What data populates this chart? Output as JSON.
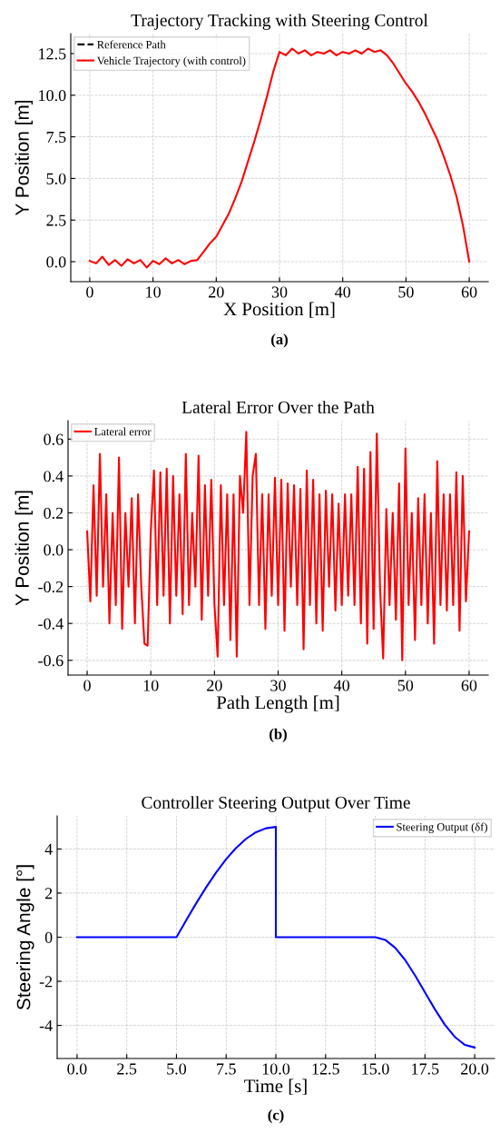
{
  "chart_data": [
    {
      "type": "line",
      "title": "Trajectory Tracking with Steering Control",
      "xlabel": "X Position [m]",
      "ylabel": "Y Position [m]",
      "annotations": [
        "(a)"
      ],
      "x": [
        0,
        1,
        2,
        3,
        4,
        5,
        6,
        7,
        8,
        9,
        10,
        11,
        12,
        13,
        14,
        15,
        16,
        17,
        18,
        19,
        20,
        21,
        22,
        23,
        24,
        25,
        26,
        27,
        28,
        29,
        30,
        31,
        32,
        33,
        34,
        35,
        36,
        37,
        38,
        39,
        40,
        41,
        42,
        43,
        44,
        45,
        46,
        47,
        48,
        49,
        50,
        51,
        52,
        53,
        54,
        55,
        56,
        57,
        58,
        59,
        60
      ],
      "series": [
        {
          "name": "Reference Path",
          "color": "#000000",
          "line_style": "dashed",
          "values": [
            null,
            null,
            null,
            null,
            null,
            null,
            null,
            null,
            null,
            null,
            null,
            null,
            null,
            null,
            null,
            null,
            null,
            null,
            null,
            null,
            null,
            null,
            null,
            null,
            null,
            null,
            null,
            null,
            null,
            null,
            null,
            null,
            null,
            null,
            null,
            null,
            null,
            null,
            null,
            null,
            null,
            null,
            null,
            null,
            null,
            null,
            null,
            null,
            null,
            null,
            null,
            null,
            null,
            null,
            null,
            null,
            null,
            null,
            null,
            null,
            null
          ]
        },
        {
          "name": "Vehicle Trajectory (with control)",
          "color": "#ff0000",
          "line_style": "solid",
          "values": [
            0.05,
            -0.1,
            0.3,
            -0.2,
            0.1,
            -0.25,
            0.15,
            -0.1,
            0.1,
            -0.35,
            0.05,
            -0.15,
            0.2,
            -0.1,
            0.1,
            -0.15,
            0.05,
            0.1,
            0.6,
            1.1,
            1.5,
            2.2,
            2.9,
            3.8,
            4.8,
            6.0,
            7.2,
            8.5,
            9.9,
            11.4,
            12.6,
            12.4,
            12.8,
            12.5,
            12.7,
            12.4,
            12.6,
            12.5,
            12.7,
            12.4,
            12.6,
            12.5,
            12.7,
            12.5,
            12.8,
            12.6,
            12.7,
            12.4,
            11.9,
            11.3,
            10.7,
            10.2,
            9.6,
            8.9,
            8.1,
            7.3,
            6.3,
            5.2,
            3.9,
            2.2,
            0.0
          ]
        }
      ],
      "xlim": [
        -3,
        63
      ],
      "ylim": [
        -1.2,
        13.7
      ],
      "xticks": [
        0,
        10,
        20,
        30,
        40,
        50,
        60
      ],
      "yticks": [
        {
          "value": 0,
          "label": "0.0"
        },
        {
          "value": 2.5,
          "label": "2.5"
        },
        {
          "value": 5,
          "label": "5.0"
        },
        {
          "value": 7.5,
          "label": "7.5"
        },
        {
          "value": 10,
          "label": "10.0"
        },
        {
          "value": 12.5,
          "label": "12.5"
        }
      ],
      "grid": true,
      "legend": "top left"
    },
    {
      "type": "line",
      "title": "Lateral Error Over the Path",
      "xlabel": "Path Length [m]",
      "ylabel": "Y Position [m]",
      "annotations": [
        "(b)"
      ],
      "x": [
        0,
        0.5,
        1,
        1.5,
        2,
        2.5,
        3,
        3.5,
        4,
        4.5,
        5,
        5.5,
        6,
        6.5,
        7,
        7.5,
        8,
        8.5,
        9,
        9.5,
        10,
        10.5,
        11,
        11.5,
        12,
        12.5,
        13,
        13.5,
        14,
        14.5,
        15,
        15.5,
        16,
        16.5,
        17,
        17.5,
        18,
        18.5,
        19,
        19.5,
        20,
        20.5,
        21,
        21.5,
        22,
        22.5,
        23,
        23.5,
        24,
        24.5,
        25,
        25.5,
        26,
        26.5,
        27,
        27.5,
        28,
        28.5,
        29,
        29.5,
        30,
        30.5,
        31,
        31.5,
        32,
        32.5,
        33,
        33.5,
        34,
        34.5,
        35,
        35.5,
        36,
        36.5,
        37,
        37.5,
        38,
        38.5,
        39,
        39.5,
        40,
        40.5,
        41,
        41.5,
        42,
        42.5,
        43,
        43.5,
        44,
        44.5,
        45,
        45.5,
        46,
        46.5,
        47,
        47.5,
        48,
        48.5,
        49,
        49.5,
        50,
        50.5,
        51,
        51.5,
        52,
        52.5,
        53,
        53.5,
        54,
        54.5,
        55,
        55.5,
        56,
        56.5,
        57,
        57.5,
        58,
        58.5,
        59,
        59.5,
        60
      ],
      "series": [
        {
          "name": "Lateral error",
          "color": "#ff0000",
          "line_style": "solid",
          "values": [
            0.1,
            -0.28,
            0.35,
            -0.25,
            0.52,
            -0.2,
            0.3,
            -0.4,
            0.2,
            -0.3,
            0.5,
            -0.43,
            0.2,
            -0.2,
            0.28,
            -0.4,
            0.3,
            -0.2,
            -0.51,
            -0.52,
            0.1,
            0.43,
            -0.3,
            0.42,
            -0.25,
            0.44,
            -0.4,
            0.4,
            -0.25,
            0.3,
            -0.35,
            0.52,
            -0.3,
            0.2,
            -0.2,
            0.51,
            -0.38,
            0.35,
            -0.25,
            0.38,
            -0.3,
            -0.58,
            0.35,
            -0.3,
            0.3,
            -0.49,
            0.3,
            -0.58,
            0.4,
            0.2,
            0.64,
            -0.3,
            0.4,
            0.52,
            -0.3,
            0.3,
            -0.43,
            0.3,
            -0.25,
            0.39,
            -0.3,
            0.38,
            -0.44,
            0.36,
            -0.2,
            0.35,
            -0.3,
            0.33,
            -0.54,
            0.43,
            -0.3,
            0.38,
            -0.4,
            0.3,
            -0.44,
            0.32,
            -0.2,
            0.3,
            -0.33,
            0.25,
            -0.3,
            0.3,
            -0.25,
            0.3,
            -0.3,
            0.45,
            -0.4,
            0.44,
            -0.51,
            0.53,
            -0.43,
            0.63,
            -0.2,
            -0.59,
            0.22,
            -0.3,
            0.2,
            -0.38,
            0.36,
            -0.6,
            0.55,
            -0.3,
            0.2,
            -0.49,
            0.28,
            -0.3,
            0.3,
            -0.4,
            0.2,
            -0.51,
            0.48,
            -0.3,
            0.3,
            -0.33,
            0.3,
            -0.3,
            0.42,
            -0.44,
            0.4,
            -0.28,
            0.1
          ]
        }
      ],
      "xlim": [
        -3,
        63
      ],
      "ylim": [
        -0.68,
        0.7
      ],
      "xticks": [
        0,
        10,
        20,
        30,
        40,
        50,
        60
      ],
      "yticks": [
        {
          "value": -0.6,
          "label": "-0.6"
        },
        {
          "value": -0.4,
          "label": "-0.4"
        },
        {
          "value": -0.2,
          "label": "-0.2"
        },
        {
          "value": 0,
          "label": "0.0"
        },
        {
          "value": 0.2,
          "label": "0.2"
        },
        {
          "value": 0.4,
          "label": "0.4"
        },
        {
          "value": 0.6,
          "label": "0.6"
        }
      ],
      "grid": true,
      "legend": "top left"
    },
    {
      "type": "line",
      "title": "Controller Steering Output Over Time",
      "xlabel": "Time [s]",
      "ylabel": "Steering Angle [°]",
      "annotations": [
        "(c)"
      ],
      "x": [
        0,
        5,
        5.5,
        6,
        6.5,
        7,
        7.5,
        8,
        8.5,
        9,
        9.5,
        10,
        10,
        15,
        15.5,
        16,
        16.5,
        17,
        17.5,
        18,
        18.5,
        19,
        19.5,
        20
      ],
      "series": [
        {
          "name": "Steering Output (δf)",
          "color": "#0000ff",
          "line_style": "solid",
          "values": [
            0,
            0,
            0.78,
            1.55,
            2.27,
            2.94,
            3.54,
            4.05,
            4.46,
            4.76,
            4.94,
            5,
            0,
            0,
            -0.12,
            -0.48,
            -1.03,
            -1.73,
            -2.5,
            -3.27,
            -3.97,
            -4.52,
            -4.88,
            -5
          ]
        }
      ],
      "xlim": [
        -1,
        21
      ],
      "ylim": [
        -5.5,
        5.5
      ],
      "xticks": [
        {
          "value": 0,
          "label": "0.0"
        },
        {
          "value": 2.5,
          "label": "2.5"
        },
        {
          "value": 5,
          "label": "5.0"
        },
        {
          "value": 7.5,
          "label": "7.5"
        },
        {
          "value": 10,
          "label": "10.0"
        },
        {
          "value": 12.5,
          "label": "12.5"
        },
        {
          "value": 15,
          "label": "15.0"
        },
        {
          "value": 17.5,
          "label": "17.5"
        },
        {
          "value": 20,
          "label": "20.0"
        }
      ],
      "yticks": [
        -4,
        -2,
        0,
        2,
        4
      ],
      "grid": true,
      "legend": "top right"
    }
  ]
}
